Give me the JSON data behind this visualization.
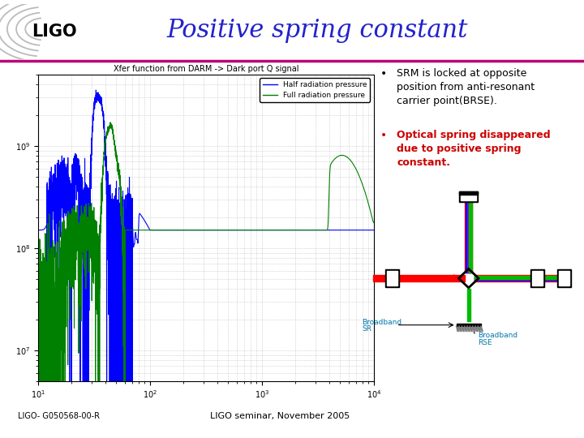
{
  "title": "Positive spring constant",
  "title_color": "#2222cc",
  "title_fontsize": 22,
  "background_color": "#ffffff",
  "bullet1": "SRM is locked at opposite\nposition from anti-resonant\ncarrier point(BRSE).",
  "bullet2": "Optical spring disappeared\ndue to positive spring\nconstant.",
  "bullet2_color": "#cc0000",
  "footer_left": "LIGO- G050568-00-R",
  "footer_center": "LIGO seminar, November 2005",
  "plot_title": "Xfer function from DARM -> Dark port Q signal",
  "legend_blue": "Half radiation pressure",
  "legend_green": "Full radiation pressure",
  "accent_color": "#bb0077",
  "diagram_colors": {
    "red_beam": "#ff0000",
    "blue_beam": "#0000ff",
    "green_beam": "#00bb00",
    "purple_beam": "#8800cc",
    "sr_label": "#0077aa",
    "rse_label": "#0077aa"
  }
}
